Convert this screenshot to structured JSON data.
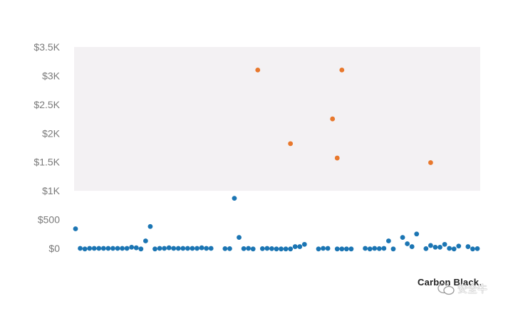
{
  "chart_data": {
    "type": "scatter",
    "title": "",
    "xlabel": "",
    "ylabel": "",
    "ylim": [
      0,
      3500
    ],
    "yticks": [
      0,
      500,
      1000,
      1500,
      2000,
      2500,
      3000,
      3500
    ],
    "ytick_labels": [
      "$0",
      "$500",
      "$1K",
      "$1.5K",
      "$2K",
      "$2.5K",
      "$3K",
      "$3.5K"
    ],
    "shaded_band": {
      "from": 1000,
      "to": 3500,
      "color": "#f3f1f3"
    },
    "colors": {
      "below_1k": "#1b75b3",
      "above_1k": "#e8782c"
    },
    "series": [
      {
        "color": "#1b75b3",
        "points": [
          [
            0,
            340
          ],
          [
            1,
            0
          ],
          [
            2,
            -10
          ],
          [
            3,
            0
          ],
          [
            4,
            0
          ],
          [
            5,
            0
          ],
          [
            6,
            0
          ],
          [
            7,
            0
          ],
          [
            8,
            0
          ],
          [
            9,
            0
          ],
          [
            10,
            0
          ],
          [
            11,
            0
          ],
          [
            12,
            20
          ],
          [
            13,
            10
          ],
          [
            14,
            -10
          ],
          [
            15,
            130
          ],
          [
            16,
            380
          ],
          [
            17,
            -10
          ],
          [
            18,
            0
          ],
          [
            19,
            0
          ],
          [
            20,
            10
          ],
          [
            21,
            0
          ],
          [
            22,
            0
          ],
          [
            23,
            0
          ],
          [
            24,
            0
          ],
          [
            25,
            0
          ],
          [
            26,
            0
          ],
          [
            27,
            10
          ],
          [
            28,
            0
          ],
          [
            29,
            0
          ],
          [
            32,
            -5
          ],
          [
            33,
            -5
          ],
          [
            34,
            870
          ],
          [
            35,
            190
          ],
          [
            36,
            -5
          ],
          [
            37,
            0
          ],
          [
            38,
            -10
          ],
          [
            40,
            -5
          ],
          [
            41,
            0
          ],
          [
            42,
            -5
          ],
          [
            43,
            -10
          ],
          [
            44,
            -10
          ],
          [
            45,
            -10
          ],
          [
            46,
            -10
          ],
          [
            47,
            30
          ],
          [
            48,
            30
          ],
          [
            49,
            70
          ],
          [
            52,
            -10
          ],
          [
            53,
            0
          ],
          [
            54,
            0
          ],
          [
            56,
            -10
          ],
          [
            57,
            -10
          ],
          [
            58,
            -10
          ],
          [
            59,
            -10
          ],
          [
            62,
            0
          ],
          [
            63,
            -10
          ],
          [
            64,
            0
          ],
          [
            65,
            -5
          ],
          [
            66,
            0
          ],
          [
            67,
            130
          ],
          [
            68,
            -10
          ],
          [
            70,
            190
          ],
          [
            71,
            80
          ],
          [
            72,
            30
          ],
          [
            73,
            250
          ],
          [
            75,
            -5
          ],
          [
            76,
            50
          ],
          [
            77,
            20
          ],
          [
            78,
            20
          ],
          [
            79,
            70
          ],
          [
            80,
            0
          ],
          [
            81,
            -10
          ],
          [
            82,
            40
          ],
          [
            84,
            30
          ],
          [
            85,
            -10
          ],
          [
            86,
            -5
          ]
        ]
      },
      {
        "color": "#e8782c",
        "points": [
          [
            39,
            3100
          ],
          [
            46,
            1820
          ],
          [
            55,
            2250
          ],
          [
            56,
            1570
          ],
          [
            57,
            3100
          ],
          [
            76,
            1490
          ]
        ]
      }
    ]
  },
  "branding": {
    "logo_text": "Carbon Black.",
    "watermark_text": "安全牛"
  }
}
